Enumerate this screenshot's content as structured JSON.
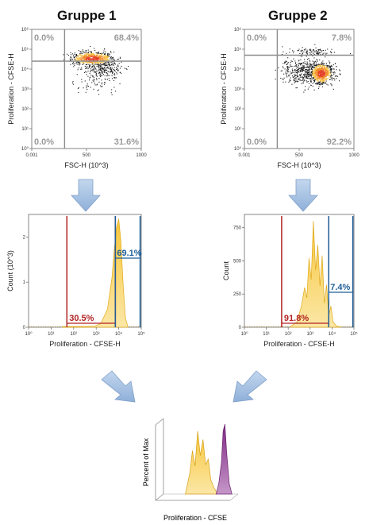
{
  "groups": [
    {
      "title": "Gruppe 1"
    },
    {
      "title": "Gruppe 2"
    }
  ],
  "colors": {
    "gate_gray": "#8c8c8c",
    "red_gate": "#b22222",
    "blue_gate": "#1f5f99",
    "yellow_fill": "#f6c94e",
    "purple_fill": "#8e3a8e",
    "arrow": "#a9c4e4"
  },
  "chart_data": [
    {
      "type": "scatter",
      "group": "Gruppe 1",
      "xlabel": "FSC-H (10^3)",
      "ylabel": "Proliferation - CFSE-H",
      "x_ticks": [
        "0.001",
        "500",
        "1000"
      ],
      "y_ticks": [
        "10⁰",
        "10¹",
        "10²",
        "10³",
        "10⁴",
        "10⁵",
        "10⁶"
      ],
      "xlim": [
        0,
        1000
      ],
      "ylim_log": [
        0,
        6
      ],
      "gate": {
        "x": 300,
        "y_log": 4.4
      },
      "quadrants": {
        "ul": "0.0%",
        "ur": "68.4%",
        "ll": "0.0%",
        "lr": "31.6%"
      },
      "populations": [
        {
          "cx": 550,
          "cy_log": 4.55,
          "sx": 190,
          "sy": 0.32,
          "n": 750
        },
        {
          "cx": 650,
          "cy_log": 4.0,
          "sx": 190,
          "sy": 0.45,
          "n": 230
        },
        {
          "cx": 550,
          "cy_log": 3.3,
          "sx": 210,
          "sy": 0.55,
          "n": 60
        }
      ]
    },
    {
      "type": "scatter",
      "group": "Gruppe 2",
      "xlabel": "FSC-H (10^3)",
      "ylabel": "Proliferation - CFSE-H",
      "x_ticks": [
        "0.001",
        "500",
        "1000"
      ],
      "y_ticks": [
        "10⁰",
        "10¹",
        "10²",
        "10³",
        "10⁴",
        "10⁵",
        "10⁶"
      ],
      "xlim": [
        0,
        1000
      ],
      "ylim_log": [
        0,
        6
      ],
      "gate": {
        "x": 300,
        "y_log": 4.7
      },
      "quadrants": {
        "ul": "0.0%",
        "ur": "7.8%",
        "ll": "0.0%",
        "lr": "92.2%"
      },
      "populations": [
        {
          "cx": 700,
          "cy_log": 3.8,
          "sx": 100,
          "sy": 0.5,
          "n": 650
        },
        {
          "cx": 560,
          "cy_log": 3.9,
          "sx": 220,
          "sy": 0.7,
          "n": 500
        },
        {
          "cx": 600,
          "cy_log": 4.9,
          "sx": 220,
          "sy": 0.2,
          "n": 90
        }
      ]
    },
    {
      "type": "area",
      "group": "Gruppe 1",
      "xlabel": "Proliferation - CFSE-H",
      "ylabel": "Count (10^3)",
      "x_ticks": [
        "10⁰",
        "10¹",
        "10²",
        "10³",
        "10⁴",
        "10⁵"
      ],
      "xlim_log": [
        0,
        5
      ],
      "ylim": [
        0,
        2.5
      ],
      "y_ticks": [
        "0",
        "1",
        "2"
      ],
      "x_log": [
        1.5,
        2.9,
        3.2,
        3.5,
        3.7,
        3.8,
        3.9,
        4.0,
        4.1,
        4.2,
        4.3,
        4.4
      ],
      "counts": [
        0.01,
        0.02,
        0.08,
        0.4,
        1.1,
        1.7,
        2.2,
        2.4,
        1.9,
        0.9,
        0.2,
        0.02
      ],
      "gates": [
        {
          "x0_log": 1.7,
          "x1_log": 3.85,
          "label": "30.5%",
          "color": "red"
        },
        {
          "x0_log": 3.85,
          "x1_log": 4.95,
          "label": "69.1%",
          "color": "blue"
        }
      ]
    },
    {
      "type": "area",
      "group": "Gruppe 2",
      "xlabel": "Proliferation - CFSE-H",
      "ylabel": "Count",
      "x_ticks": [
        "10⁰",
        "10¹",
        "10²",
        "10³",
        "10⁴",
        "10⁵"
      ],
      "xlim_log": [
        0,
        5
      ],
      "ylim": [
        0,
        850
      ],
      "y_ticks": [
        "0",
        "250",
        "500",
        "750"
      ],
      "x_log": [
        2.1,
        2.4,
        2.6,
        2.75,
        2.85,
        2.95,
        3.05,
        3.15,
        3.25,
        3.35,
        3.45,
        3.55,
        3.65,
        3.75,
        3.85,
        3.95,
        4.05,
        4.2,
        4.4
      ],
      "counts": [
        5,
        40,
        160,
        300,
        220,
        520,
        360,
        800,
        430,
        620,
        310,
        540,
        180,
        320,
        90,
        160,
        40,
        10,
        0
      ],
      "gates": [
        {
          "x0_log": 1.7,
          "x1_log": 3.85,
          "label": "91.8%",
          "color": "red"
        },
        {
          "x0_log": 3.85,
          "x1_log": 4.95,
          "label": "7.4%",
          "color": "blue"
        }
      ]
    },
    {
      "type": "area",
      "group": "overlay",
      "xlabel": "Proliferation - CFSE",
      "ylabel": "Percent of Max",
      "series": [
        {
          "name": "",
          "color": "yellow",
          "x": [
            0.55,
            0.6,
            0.63,
            0.66,
            0.69,
            0.72,
            0.75,
            0.78,
            0.81,
            0.84,
            0.88,
            0.92
          ],
          "y": [
            0,
            0.3,
            0.62,
            0.4,
            0.9,
            0.55,
            0.78,
            0.42,
            0.5,
            0.2,
            0.08,
            0
          ]
        },
        {
          "name": "",
          "color": "purple",
          "x": [
            0.9,
            0.93,
            0.96,
            0.98,
            1.0,
            1.02,
            1.05,
            1.08
          ],
          "y": [
            0,
            0.15,
            0.45,
            0.9,
            1.0,
            0.6,
            0.15,
            0
          ]
        }
      ]
    }
  ]
}
